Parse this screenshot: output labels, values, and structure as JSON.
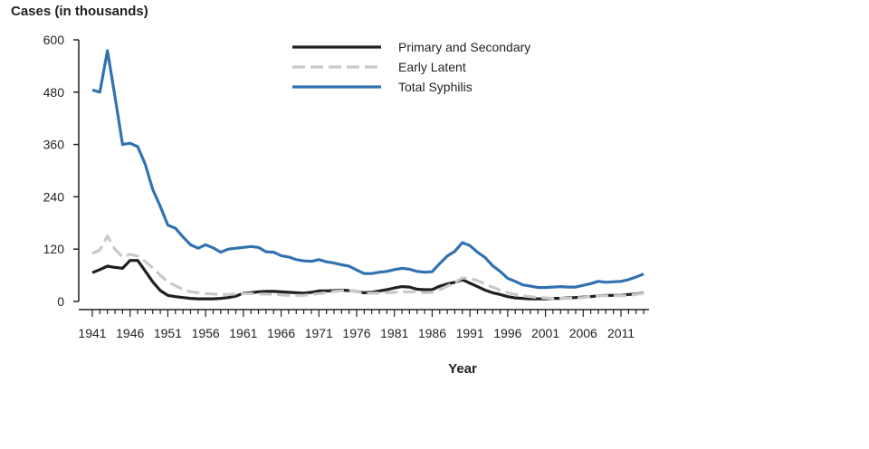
{
  "chart_data": {
    "type": "line",
    "title": "",
    "ylabel": "Cases (in thousands)",
    "xlabel": "Year",
    "ylim": [
      0,
      600
    ],
    "yticks": [
      0,
      120,
      240,
      360,
      480,
      600
    ],
    "xlim": [
      1941,
      2014
    ],
    "xtick_labels": [
      1941,
      1946,
      1951,
      1956,
      1961,
      1966,
      1971,
      1976,
      1981,
      1986,
      1991,
      1996,
      2001,
      2006,
      2011
    ],
    "grid": false,
    "legend_position": "top-center",
    "x_start_year": 1941,
    "series": [
      {
        "name": "Primary and Secondary",
        "color": "#231f20",
        "dash": "solid",
        "values": [
          66,
          73,
          81,
          78,
          76,
          94,
          94,
          70,
          45,
          25,
          14,
          11,
          9,
          7,
          6,
          6,
          6,
          7,
          9,
          12,
          19,
          20,
          22,
          23,
          23,
          22,
          21,
          20,
          19,
          21,
          24,
          24,
          25,
          26,
          25,
          23,
          20,
          21,
          24,
          27,
          31,
          34,
          33,
          28,
          27,
          27,
          35,
          40,
          44,
          50,
          42,
          34,
          26,
          20,
          16,
          11,
          8,
          7,
          6,
          6,
          6,
          7,
          7,
          8,
          9,
          10,
          11,
          13,
          14,
          14,
          14,
          16,
          17,
          20
        ]
      },
      {
        "name": "Early Latent",
        "color": "#c8c9cb",
        "dash": "dashed",
        "values": [
          110,
          118,
          150,
          120,
          102,
          108,
          104,
          92,
          77,
          60,
          45,
          36,
          28,
          22,
          20,
          18,
          17,
          16,
          16,
          17,
          18,
          18,
          17,
          17,
          16,
          15,
          14,
          14,
          14,
          16,
          18,
          20,
          23,
          25,
          25,
          23,
          18,
          19,
          19,
          20,
          21,
          22,
          22,
          22,
          20,
          21,
          27,
          35,
          44,
          54,
          53,
          48,
          40,
          33,
          26,
          20,
          16,
          13,
          11,
          9,
          8,
          7,
          7,
          7,
          8,
          9,
          11,
          13,
          13,
          13,
          13,
          14,
          16,
          19
        ]
      },
      {
        "name": "Total Syphilis",
        "color": "#3272b0",
        "dash": "solid",
        "values": [
          485,
          480,
          575,
          470,
          360,
          363,
          355,
          315,
          257,
          218,
          175,
          168,
          148,
          130,
          122,
          130,
          123,
          113,
          120,
          122,
          124,
          126,
          124,
          114,
          113,
          105,
          102,
          96,
          93,
          92,
          96,
          91,
          88,
          84,
          81,
          72,
          64,
          64,
          67,
          69,
          73,
          76,
          74,
          69,
          67,
          68,
          87,
          104,
          115,
          135,
          128,
          113,
          101,
          82,
          69,
          53,
          46,
          38,
          35,
          32,
          32,
          33,
          34,
          33,
          33,
          37,
          41,
          46,
          44,
          45,
          46,
          50,
          56,
          63
        ]
      }
    ]
  }
}
